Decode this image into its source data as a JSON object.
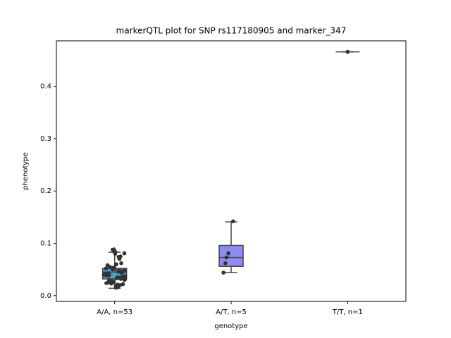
{
  "chart_data": {
    "type": "box",
    "title": "markerQTL plot for SNP rs117180905 and marker_347",
    "xlabel": "genotype",
    "ylabel": "phenotype",
    "categories": [
      "A/A, n=53",
      "A/T, n=5",
      "T/T, n=1"
    ],
    "ylim": [
      -0.011,
      0.487
    ],
    "yticks": [
      {
        "value": 0,
        "label": "0.0"
      },
      0.1,
      0.2,
      0.3,
      0.4
    ],
    "boxes": [
      {
        "color": "#4a9fc9",
        "whislo": 0.014,
        "q1": 0.032,
        "med": 0.045,
        "q3": 0.052,
        "whishi": 0.083,
        "fliers": [
          0.088
        ],
        "points": [
          0.083,
          0.081,
          0.08,
          0.075,
          0.074,
          0.07,
          0.062,
          0.06,
          0.058,
          0.055,
          0.054,
          0.053,
          0.052,
          0.051,
          0.05,
          0.049,
          0.048,
          0.047,
          0.046,
          0.046,
          0.045,
          0.045,
          0.044,
          0.043,
          0.042,
          0.041,
          0.04,
          0.04,
          0.039,
          0.038,
          0.037,
          0.036,
          0.035,
          0.034,
          0.033,
          0.032,
          0.031,
          0.03,
          0.029,
          0.028,
          0.027,
          0.026,
          0.025,
          0.024,
          0.023,
          0.022,
          0.021,
          0.02,
          0.019,
          0.018,
          0.016,
          0.015,
          0.088
        ]
      },
      {
        "color": "#8e8cf0",
        "whislo": 0.044,
        "q1": 0.056,
        "med": 0.073,
        "q3": 0.096,
        "whishi": 0.141,
        "fliers": [],
        "points": [
          0.142,
          0.081,
          0.073,
          0.062,
          0.044
        ]
      },
      {
        "whislo": 0.466,
        "q1": 0.466,
        "med": 0.466,
        "q3": 0.466,
        "whishi": 0.466,
        "fliers": [],
        "points": [
          0.466
        ]
      }
    ]
  }
}
